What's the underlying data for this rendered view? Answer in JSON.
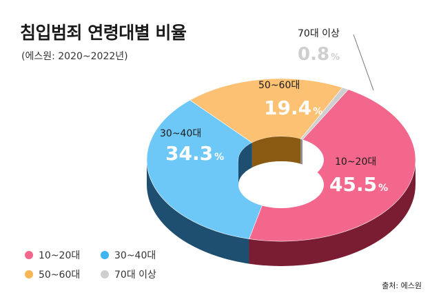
{
  "title": "침입범죄 연령대별 비율",
  "subtitle": "(에스원: 2020~2022년)",
  "source": "출처: 에스원",
  "chart_data": {
    "type": "pie",
    "categories": [
      "10~20대",
      "30~40대",
      "50~60대",
      "70대 이상"
    ],
    "values": [
      45.5,
      34.3,
      19.4,
      0.8
    ],
    "unit": "%",
    "colors": [
      "#f2678b",
      "#6ec8f7",
      "#fcc172",
      "#cfcfcf"
    ],
    "side_colors": [
      "#7a1d33",
      "#1f4f70",
      "#8a5a13",
      "#8d8d8d"
    ],
    "value_labels": [
      "45.5",
      "34.3",
      "19.4",
      "0.8"
    ],
    "legend_position": "bottom-left"
  },
  "legend": [
    {
      "label": "10~20대",
      "color": "#f2678b"
    },
    {
      "label": "30~40대",
      "color": "#3bb4ef"
    },
    {
      "label": "50~60대",
      "color": "#f8b555"
    },
    {
      "label": "70대 이상",
      "color": "#cfcfcf"
    }
  ]
}
